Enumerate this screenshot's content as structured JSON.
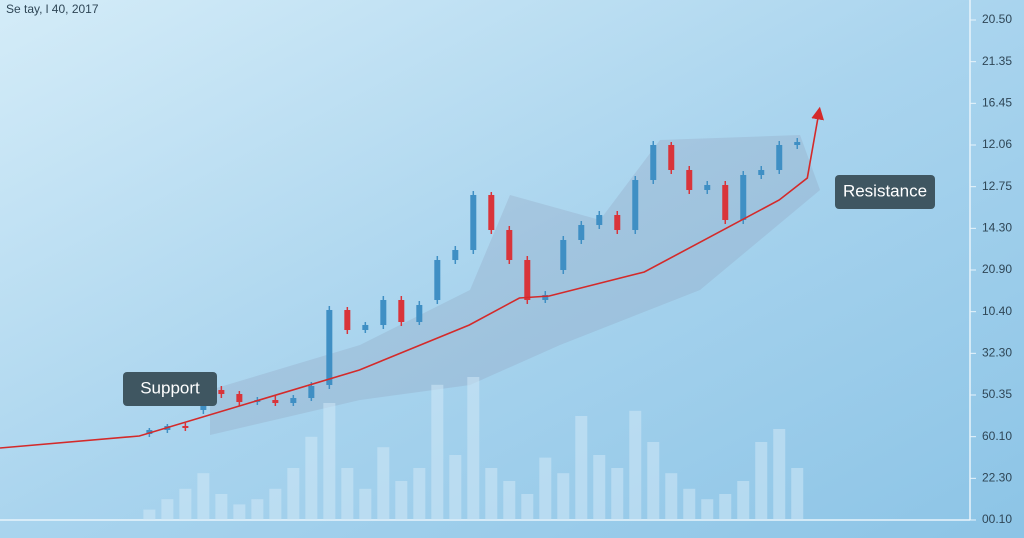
{
  "chart_data": {
    "type": "candlestick",
    "title": "Se tay, l 40, 2017",
    "right_axis_labels": [
      "20.50",
      "21.35",
      "16.45",
      "12.06",
      "12.75",
      "14.30",
      "20.90",
      "10.40",
      "32.30",
      "50.35",
      "60.10",
      "22.30",
      "00.10"
    ],
    "ylim": [
      0,
      52
    ],
    "xlim": [
      -8.3,
      45.6
    ],
    "up_color": "#3f8fc4",
    "down_color": "#d9343a",
    "open": [
      8.6,
      9.0,
      9.4,
      11.0,
      13.0,
      12.6,
      11.8,
      12.0,
      11.7,
      12.2,
      13.5,
      21.0,
      19.0,
      19.5,
      22.0,
      19.8,
      22.0,
      26.0,
      27.0,
      32.5,
      29.0,
      26.0,
      22.0,
      25.0,
      28.0,
      29.5,
      30.5,
      29.0,
      34.0,
      37.5,
      35.0,
      33.0,
      33.5,
      30.0,
      34.5,
      35.0,
      37.5
    ],
    "high": [
      9.2,
      9.6,
      9.7,
      13.4,
      13.4,
      12.9,
      12.3,
      12.4,
      12.5,
      13.8,
      21.4,
      21.3,
      19.8,
      22.4,
      22.4,
      21.9,
      26.4,
      27.4,
      32.9,
      32.8,
      29.4,
      26.4,
      22.9,
      28.4,
      29.9,
      30.9,
      30.9,
      34.4,
      37.9,
      37.8,
      35.4,
      33.9,
      33.9,
      34.9,
      35.4,
      37.9,
      38.2
    ],
    "low": [
      8.3,
      8.7,
      8.9,
      10.6,
      12.2,
      11.4,
      11.5,
      11.4,
      11.4,
      11.9,
      13.1,
      18.6,
      18.7,
      19.1,
      19.4,
      19.5,
      21.6,
      25.6,
      26.6,
      28.6,
      25.6,
      21.6,
      21.7,
      24.6,
      27.6,
      29.1,
      28.6,
      28.6,
      33.6,
      34.6,
      32.6,
      32.6,
      29.6,
      29.6,
      34.1,
      34.6,
      37.1
    ],
    "close": [
      9.0,
      9.4,
      9.2,
      13.0,
      12.6,
      11.8,
      12.0,
      11.7,
      12.2,
      13.4,
      21.0,
      19.0,
      19.5,
      22.0,
      19.8,
      21.5,
      26.0,
      27.0,
      32.5,
      29.0,
      26.0,
      22.0,
      22.5,
      28.0,
      29.5,
      30.5,
      29.0,
      34.0,
      37.5,
      35.0,
      33.0,
      33.5,
      30.0,
      34.5,
      35.0,
      37.5,
      37.8
    ],
    "volume": [
      4,
      8,
      12,
      18,
      10,
      6,
      8,
      12,
      20,
      32,
      45,
      20,
      12,
      28,
      15,
      20,
      52,
      25,
      55,
      20,
      15,
      10,
      24,
      18,
      40,
      25,
      20,
      42,
      30,
      18,
      12,
      8,
      10,
      15,
      30,
      35,
      20
    ],
    "volume_ylim": [
      0,
      200
    ],
    "trend": {
      "color": "#d42a2a",
      "x": [
        -8.3,
        -0.56,
        11.67,
        17.78,
        20.56,
        22.22,
        27.5,
        35,
        36.56,
        37.2
      ],
      "y": [
        7.2,
        8.4,
        15,
        19.5,
        22.2,
        22.4,
        24.8,
        32,
        34.2,
        40.7
      ]
    },
    "annotations": [
      "Support",
      "Resistance"
    ]
  }
}
